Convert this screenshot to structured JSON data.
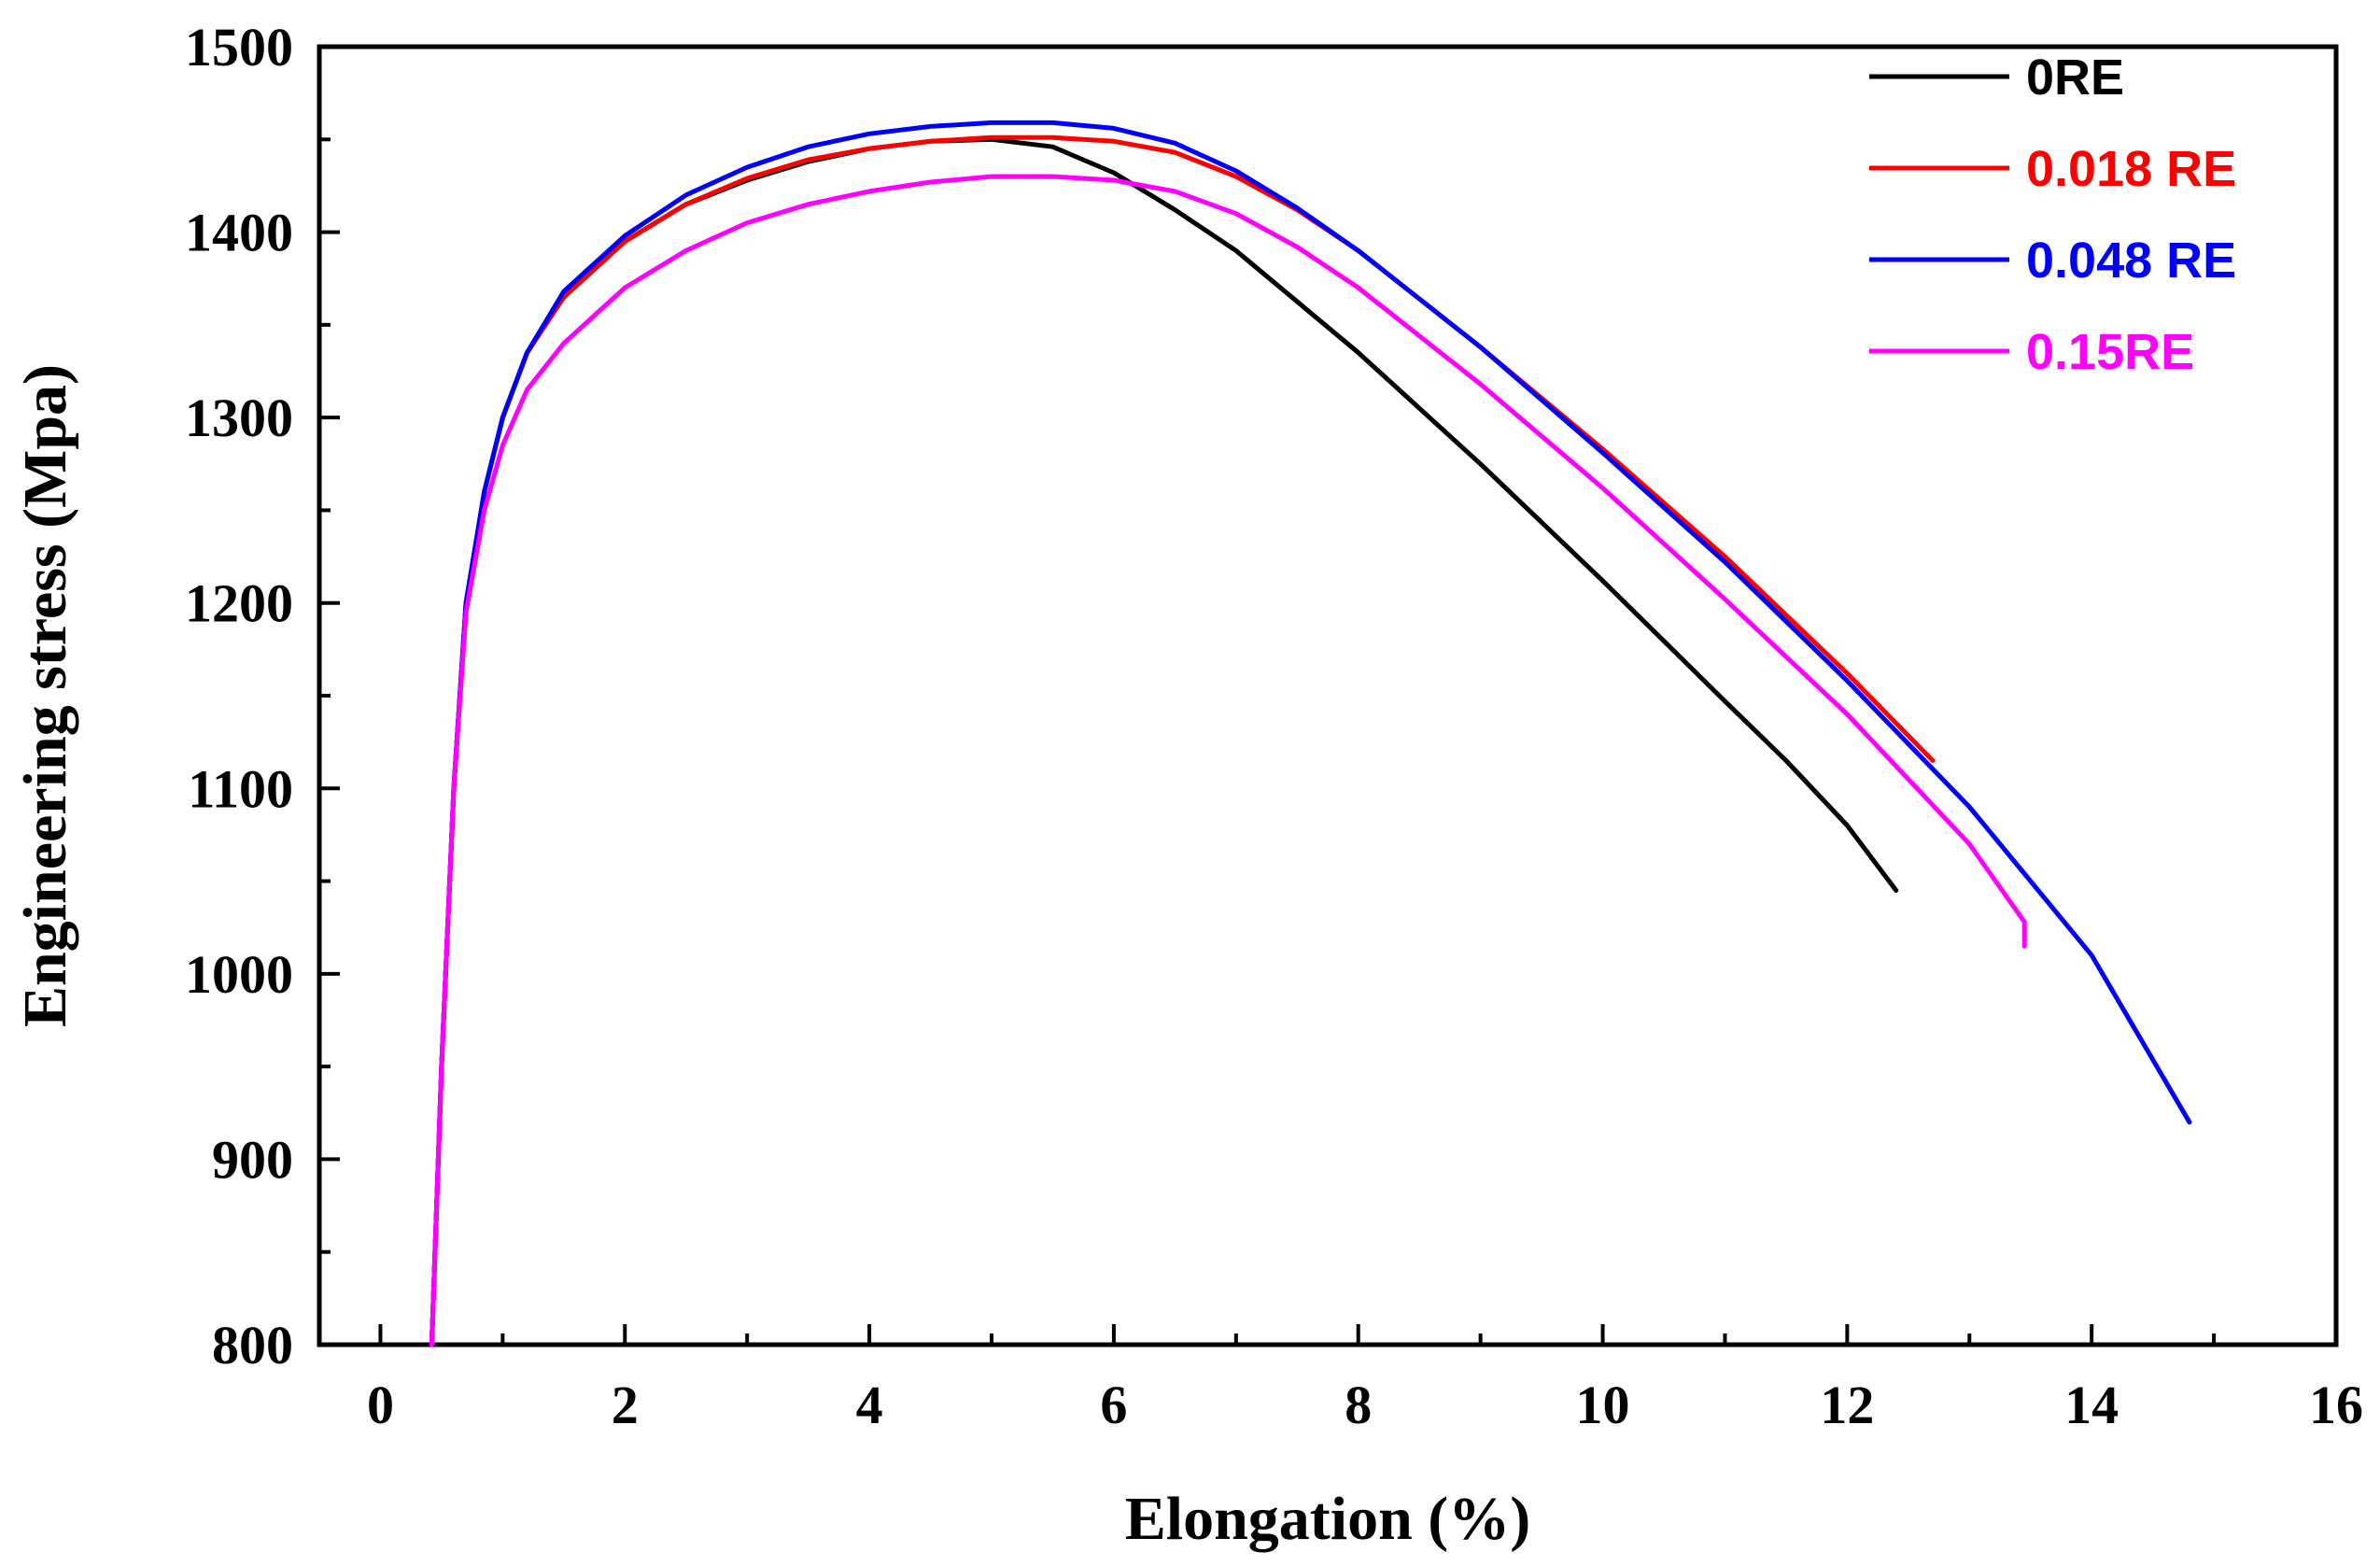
{
  "chart_data": {
    "type": "line",
    "title": "",
    "xlabel": "Elongation (%)",
    "ylabel": "Engineering stress (Mpa)",
    "xlim": [
      -0.5,
      16
    ],
    "ylim": [
      800,
      1500
    ],
    "xticks": [
      0,
      2,
      4,
      6,
      8,
      10,
      12,
      14,
      16
    ],
    "yticks": [
      800,
      900,
      1000,
      1100,
      1200,
      1300,
      1400,
      1500
    ],
    "grid": false,
    "legend_position": "top-right",
    "series": [
      {
        "name": "0RE",
        "color": "#000000",
        "points": [
          [
            0.42,
            800
          ],
          [
            0.5,
            950
          ],
          [
            0.6,
            1100
          ],
          [
            0.7,
            1200
          ],
          [
            0.85,
            1260
          ],
          [
            1.0,
            1300
          ],
          [
            1.2,
            1335
          ],
          [
            1.5,
            1365
          ],
          [
            2.0,
            1395
          ],
          [
            2.5,
            1415
          ],
          [
            3.0,
            1428
          ],
          [
            3.5,
            1438
          ],
          [
            4.0,
            1445
          ],
          [
            4.5,
            1449
          ],
          [
            5.0,
            1450
          ],
          [
            5.5,
            1446
          ],
          [
            6.0,
            1432
          ],
          [
            6.5,
            1412
          ],
          [
            7.0,
            1390
          ],
          [
            8.0,
            1335
          ],
          [
            9.0,
            1275
          ],
          [
            10.0,
            1212
          ],
          [
            11.0,
            1147
          ],
          [
            11.5,
            1115
          ],
          [
            12.0,
            1080
          ],
          [
            12.4,
            1045
          ]
        ]
      },
      {
        "name": "0.018 RE",
        "color": "#ff0000",
        "points": [
          [
            0.42,
            800
          ],
          [
            0.5,
            950
          ],
          [
            0.6,
            1100
          ],
          [
            0.7,
            1200
          ],
          [
            0.85,
            1260
          ],
          [
            1.0,
            1300
          ],
          [
            1.2,
            1335
          ],
          [
            1.5,
            1365
          ],
          [
            2.0,
            1395
          ],
          [
            2.5,
            1415
          ],
          [
            3.0,
            1429
          ],
          [
            3.5,
            1439
          ],
          [
            4.0,
            1445
          ],
          [
            4.5,
            1449
          ],
          [
            5.0,
            1451
          ],
          [
            5.5,
            1451
          ],
          [
            6.0,
            1449
          ],
          [
            6.5,
            1443
          ],
          [
            7.0,
            1430
          ],
          [
            7.5,
            1412
          ],
          [
            8.0,
            1390
          ],
          [
            9.0,
            1338
          ],
          [
            10.0,
            1283
          ],
          [
            11.0,
            1225
          ],
          [
            12.0,
            1162
          ],
          [
            12.7,
            1115
          ]
        ]
      },
      {
        "name": "0.048 RE",
        "color": "#0000ff",
        "points": [
          [
            0.42,
            800
          ],
          [
            0.5,
            950
          ],
          [
            0.6,
            1100
          ],
          [
            0.7,
            1200
          ],
          [
            0.85,
            1260
          ],
          [
            1.0,
            1300
          ],
          [
            1.2,
            1335
          ],
          [
            1.5,
            1368
          ],
          [
            2.0,
            1398
          ],
          [
            2.5,
            1420
          ],
          [
            3.0,
            1435
          ],
          [
            3.5,
            1446
          ],
          [
            4.0,
            1453
          ],
          [
            4.5,
            1457
          ],
          [
            5.0,
            1459
          ],
          [
            5.5,
            1459
          ],
          [
            6.0,
            1456
          ],
          [
            6.5,
            1448
          ],
          [
            7.0,
            1433
          ],
          [
            7.5,
            1413
          ],
          [
            8.0,
            1390
          ],
          [
            9.0,
            1338
          ],
          [
            10.0,
            1281
          ],
          [
            11.0,
            1222
          ],
          [
            12.0,
            1158
          ],
          [
            13.0,
            1090
          ],
          [
            14.0,
            1010
          ],
          [
            14.8,
            920
          ]
        ]
      },
      {
        "name": "0.15RE",
        "color": "#ff00ff",
        "points": [
          [
            0.42,
            800
          ],
          [
            0.5,
            950
          ],
          [
            0.6,
            1100
          ],
          [
            0.7,
            1195
          ],
          [
            0.85,
            1250
          ],
          [
            1.0,
            1285
          ],
          [
            1.2,
            1315
          ],
          [
            1.5,
            1340
          ],
          [
            2.0,
            1370
          ],
          [
            2.5,
            1390
          ],
          [
            3.0,
            1405
          ],
          [
            3.5,
            1415
          ],
          [
            4.0,
            1422
          ],
          [
            4.5,
            1427
          ],
          [
            5.0,
            1430
          ],
          [
            5.5,
            1430
          ],
          [
            6.0,
            1428
          ],
          [
            6.5,
            1422
          ],
          [
            7.0,
            1410
          ],
          [
            7.5,
            1392
          ],
          [
            8.0,
            1370
          ],
          [
            9.0,
            1318
          ],
          [
            10.0,
            1262
          ],
          [
            11.0,
            1202
          ],
          [
            12.0,
            1140
          ],
          [
            13.0,
            1070
          ],
          [
            13.45,
            1028
          ],
          [
            13.45,
            1015
          ]
        ]
      }
    ]
  }
}
